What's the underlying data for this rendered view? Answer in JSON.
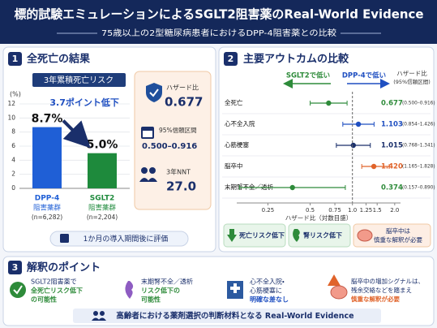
{
  "header": {
    "title": "標的試験エミュレーションによるSGLT2阻害薬のReal-World Evidence",
    "subtitle": "75歳以上の2型糖尿病患者におけるDPP-4阻害薬との比較"
  },
  "panel1": {
    "number": "1",
    "title": "全死亡の結果",
    "hr_label": "ハザード比",
    "hr_value": "0.677",
    "ci_label": "95%信頼区間",
    "ci_value": "0.500–0.916",
    "nnt_label": "3年NNT",
    "nnt_value": "27.0",
    "note": "1か月の導入期間後に評価"
  },
  "panel2": {
    "number": "2",
    "title": "主要アウトカムの比較",
    "badges": [
      "死亡リスク低下",
      "腎リスク低下"
    ],
    "caution": [
      "脳卒中は",
      "慎重な解釈が必要"
    ]
  },
  "panel3": {
    "number": "3",
    "title": "解釈のポイント",
    "items": [
      [
        "SGLT2阻害薬で",
        "全死亡リスク低下",
        "の可能性"
      ],
      [
        "末期腎不全／透析",
        "リスク低下の",
        "可能性"
      ],
      [
        "心不全入院・",
        "心筋梗塞に",
        "明確な差なし"
      ],
      [
        "脳卒中の増加シグナルは、",
        "残余交絡などを踏まえ",
        "慎重な解釈が必要"
      ]
    ],
    "footer": "高齢者における薬剤選択の判断材料となる Real-World Evidence"
  },
  "chart_data": [
    {
      "type": "bar",
      "title": "3年累積死亡リスク",
      "y_label": "(%)",
      "categories": [
        "DPP-4",
        "SGLT2"
      ],
      "category_sublabels": [
        "阻害薬群",
        "阻害薬群"
      ],
      "category_notes": [
        "(n=6,282)",
        "(n=2,204)"
      ],
      "values": [
        8.7,
        5.0
      ],
      "value_labels": [
        "8.7%",
        "5.0%"
      ],
      "colors": [
        "#1f5fd6",
        "#1e8a3c"
      ],
      "annotation": "3.7ポイント低下",
      "ylim": [
        0,
        12
      ],
      "yticks": [
        0,
        2,
        4,
        6,
        8,
        10,
        12
      ],
      "grid": true
    },
    {
      "type": "forest",
      "x_label": "ハザード比（対数目盛）",
      "direction_labels": [
        "SGLT2で低い",
        "DPP-4で低い"
      ],
      "estimate_header": [
        "ハザード比",
        "(95%信頼区間)"
      ],
      "categories": [
        "全死亡",
        "心不全入院",
        "心筋梗塞",
        "脳卒中",
        "末期腎不全／透析"
      ],
      "values": [
        0.677,
        1.103,
        1.015,
        1.42,
        0.374
      ],
      "value_labels": [
        "0.677",
        "1.103",
        "1.015",
        "1.420",
        "0.374"
      ],
      "lower": [
        0.5,
        0.854,
        0.768,
        1.165,
        0.157
      ],
      "upper": [
        0.916,
        1.426,
        1.341,
        1.828,
        0.89
      ],
      "ci_labels": [
        "(0.500–0.916)",
        "(0.854–1.426)",
        "(0.768–1.341)",
        "(1.165–1.828)",
        "(0.157–0.890)"
      ],
      "colors": [
        "#2e8b3a",
        "#1f4fc1",
        "#1a2f6b",
        "#e0632a",
        "#2e8b3a"
      ],
      "log_scale": true,
      "reference_line": 1,
      "xlim": [
        0.15,
        2.2
      ],
      "xticks": [
        0.25,
        0.5,
        0.75,
        {
          "value": 1,
          "label": "1.0"
        },
        1.25,
        1.5,
        {
          "value": 2,
          "label": "2.0"
        }
      ]
    }
  ]
}
